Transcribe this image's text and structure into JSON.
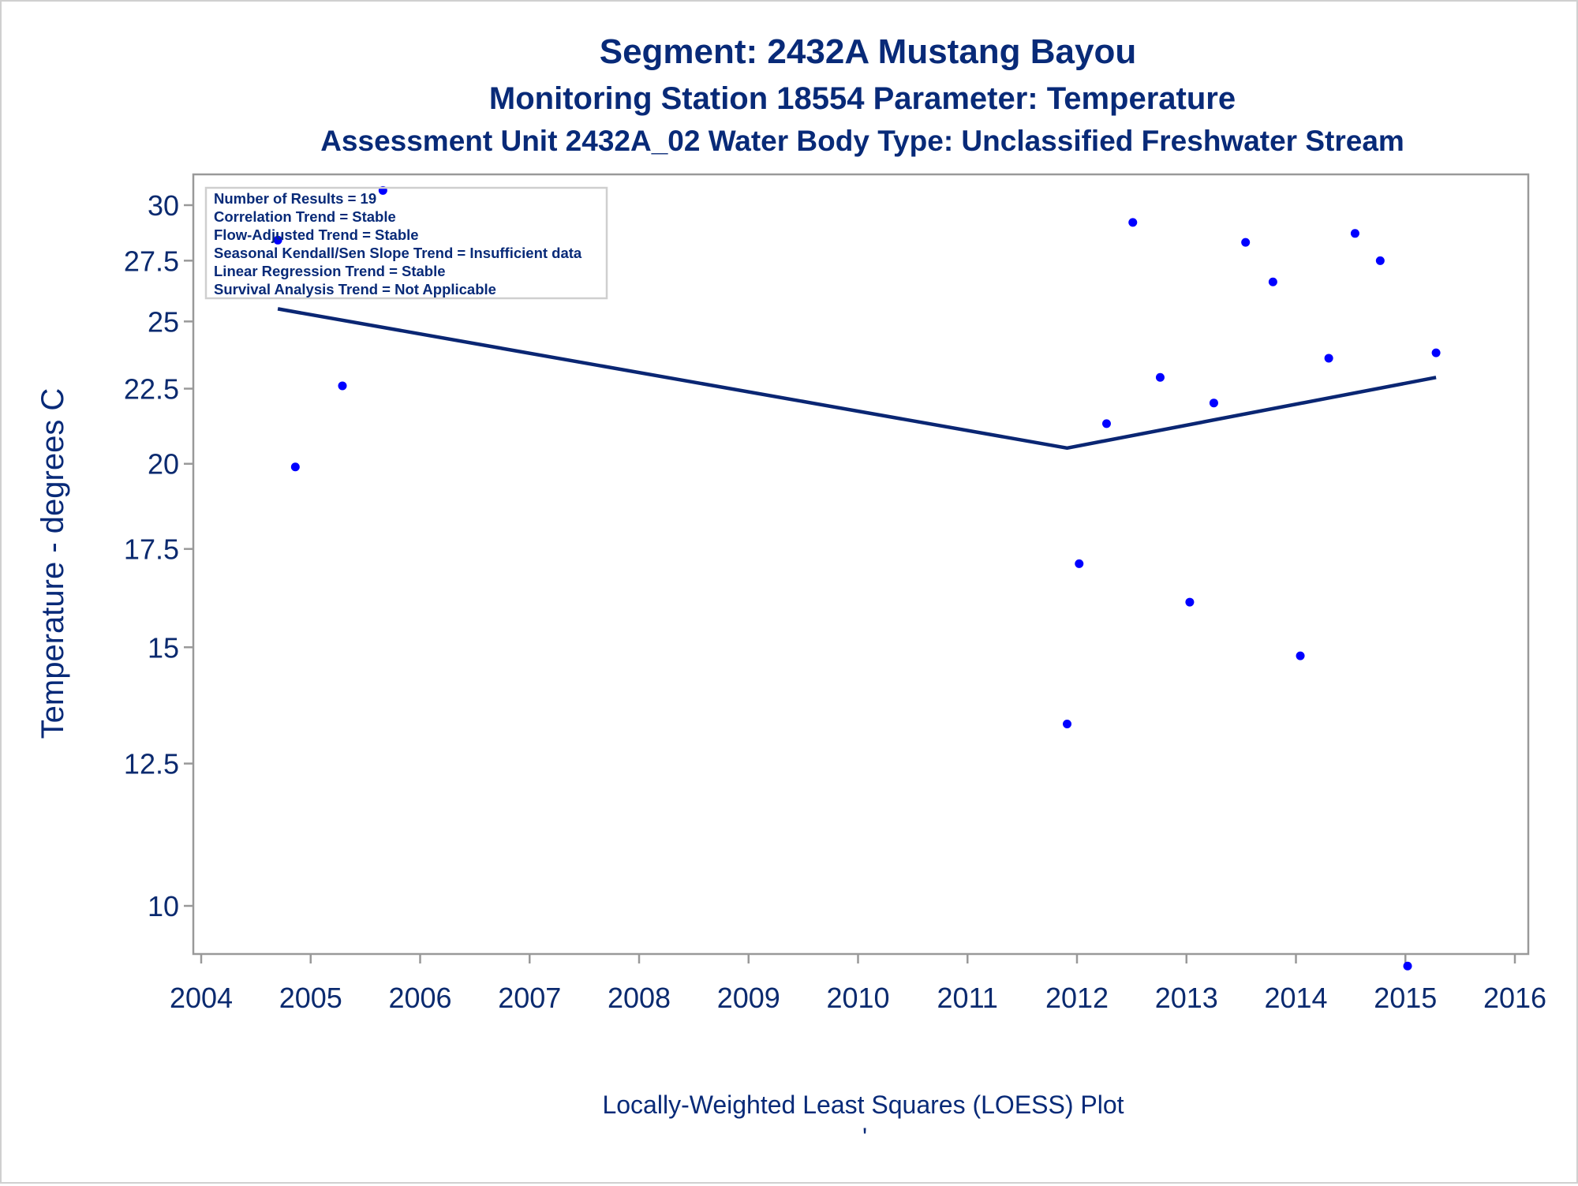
{
  "titles": {
    "line1": "Segment: 2432A  Mustang Bayou",
    "line2": "Monitoring Station 18554 Parameter: Temperature",
    "line3": "Assessment Unit 2432A_02   Water Body Type: Unclassified Freshwater Stream"
  },
  "footnote": "Locally-Weighted Least Squares (LOESS) Plot",
  "footnote_mark": "'",
  "stats_box": [
    "Number of Results = 19",
    "Correlation Trend = Stable",
    "Flow-Adjusted Trend = Stable",
    "Seasonal Kendall/Sen Slope Trend = Insufficient data",
    "Linear Regression Trend = Stable",
    "Survival Analysis Trend = Not Applicable"
  ],
  "colors": {
    "points": "#0000ff",
    "loess_line": "#0a2673",
    "axis": "#999999",
    "text": "#082a78"
  },
  "chart_data": {
    "type": "scatter",
    "ylabel": "Temperature - degrees C",
    "xlabel": "",
    "x_ticks": [
      2004,
      2005,
      2006,
      2007,
      2008,
      2009,
      2010,
      2011,
      2012,
      2013,
      2014,
      2015,
      2016
    ],
    "y_ticks": [
      10,
      12.5,
      15,
      17.5,
      20,
      22.5,
      25,
      27.5,
      30
    ],
    "y_tick_labels": [
      "10",
      "12.5",
      "15",
      "17.5",
      "20",
      "22.5",
      "25",
      "27.5",
      "30"
    ],
    "y_scale": "log",
    "xlim": [
      2004,
      2016
    ],
    "ylim": [
      9.0,
      31.0
    ],
    "legend_box_position": "top-left",
    "grid": false,
    "points": [
      {
        "x": 2004.7,
        "y": 28.4
      },
      {
        "x": 2004.86,
        "y": 19.9
      },
      {
        "x": 2005.29,
        "y": 22.6
      },
      {
        "x": 2005.66,
        "y": 30.7
      },
      {
        "x": 2011.91,
        "y": 13.3
      },
      {
        "x": 2012.02,
        "y": 17.1
      },
      {
        "x": 2012.27,
        "y": 21.3
      },
      {
        "x": 2012.51,
        "y": 29.2
      },
      {
        "x": 2012.76,
        "y": 22.9
      },
      {
        "x": 2013.03,
        "y": 16.1
      },
      {
        "x": 2013.25,
        "y": 22.0
      },
      {
        "x": 2013.54,
        "y": 28.3
      },
      {
        "x": 2013.79,
        "y": 26.6
      },
      {
        "x": 2014.04,
        "y": 14.8
      },
      {
        "x": 2014.3,
        "y": 23.6
      },
      {
        "x": 2014.54,
        "y": 28.7
      },
      {
        "x": 2014.77,
        "y": 27.5
      },
      {
        "x": 2015.02,
        "y": 9.1
      },
      {
        "x": 2015.28,
        "y": 23.8
      }
    ],
    "series": [
      {
        "type": "line",
        "x": [
          2004.7,
          2011.91,
          2015.28
        ],
        "y": [
          25.5,
          20.5,
          22.9
        ]
      }
    ]
  }
}
